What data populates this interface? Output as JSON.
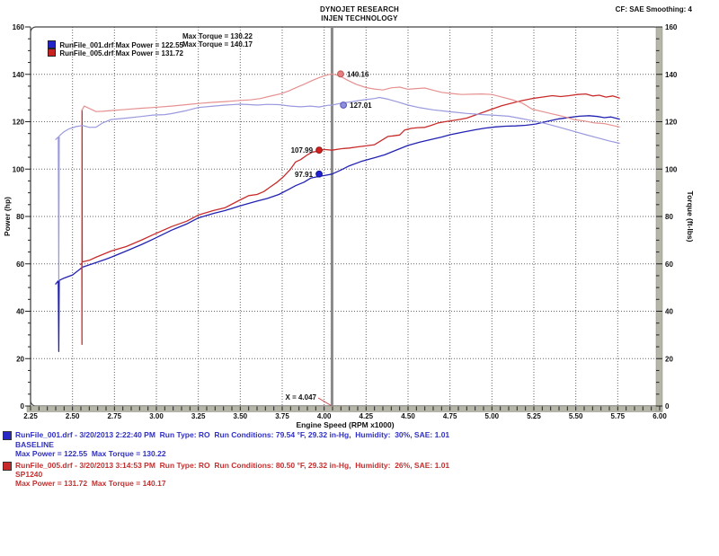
{
  "header": {
    "title": "DYNOJET RESEARCH",
    "subtitle": "INJEN TECHNOLOGY",
    "correction": "CF: SAE  Smoothing: 4"
  },
  "legend": {
    "rows": [
      {
        "swatch": "#2323c8",
        "file_power": "RunFile_001.drf Max Power = 122.55",
        "torque": "Max Torque = 130.22"
      },
      {
        "swatch": "#c82323",
        "file_power": "RunFile_005.drf Max Power = 131.72",
        "torque": "Max Torque = 140.17"
      }
    ]
  },
  "cursor": {
    "rpm": 4.047,
    "label": "X = 4.047",
    "color": "#8a8a8a",
    "pointer_color": "#cc4444"
  },
  "chart_data": {
    "type": "line",
    "title": "",
    "xlabel": "Engine Speed (RPM x1000)",
    "ylabel_left": "Power (hp)",
    "ylabel_right": "Torque (ft-lbs)",
    "xlim": [
      2.25,
      6.0
    ],
    "ylim": [
      0,
      160
    ],
    "grid": "dotted",
    "legend_position": "top-left",
    "x_ticks": [
      "2.25",
      "2.50",
      "2.75",
      "3.00",
      "3.25",
      "3.50",
      "3.75",
      "4.00",
      "4.25",
      "4.50",
      "4.75",
      "5.00",
      "5.25",
      "5.50",
      "5.75",
      "6.00"
    ],
    "y_ticks": [
      "0",
      "20",
      "40",
      "60",
      "80",
      "100",
      "120",
      "140",
      "160"
    ],
    "series": [
      {
        "name": "RunFile_001 Power (hp)",
        "color": "#2222b2",
        "width": 1.3,
        "points": [
          [
            2.4,
            51.5
          ],
          [
            2.415,
            52.8
          ],
          [
            2.418,
            23.0
          ],
          [
            2.421,
            53.0
          ],
          [
            2.45,
            54.0
          ],
          [
            2.5,
            55.3
          ],
          [
            2.56,
            58.6
          ],
          [
            2.64,
            60.5
          ],
          [
            2.7,
            62.0
          ],
          [
            2.73,
            62.8
          ],
          [
            2.82,
            65.4
          ],
          [
            2.91,
            68.1
          ],
          [
            2.98,
            70.4
          ],
          [
            3.09,
            74.2
          ],
          [
            3.18,
            76.8
          ],
          [
            3.25,
            79.4
          ],
          [
            3.34,
            81.3
          ],
          [
            3.41,
            82.5
          ],
          [
            3.5,
            84.5
          ],
          [
            3.6,
            86.5
          ],
          [
            3.66,
            87.6
          ],
          [
            3.73,
            89.3
          ],
          [
            3.79,
            91.5
          ],
          [
            3.83,
            93.0
          ],
          [
            3.88,
            94.5
          ],
          [
            3.92,
            96.2
          ],
          [
            3.97,
            96.9
          ],
          [
            4.01,
            97.4
          ],
          [
            4.047,
            97.91
          ],
          [
            4.1,
            99.6
          ],
          [
            4.15,
            101.4
          ],
          [
            4.22,
            103.2
          ],
          [
            4.3,
            104.8
          ],
          [
            4.36,
            106.0
          ],
          [
            4.43,
            108.0
          ],
          [
            4.5,
            110.0
          ],
          [
            4.57,
            111.4
          ],
          [
            4.65,
            112.7
          ],
          [
            4.7,
            113.5
          ],
          [
            4.75,
            114.5
          ],
          [
            4.82,
            115.5
          ],
          [
            4.9,
            116.6
          ],
          [
            4.96,
            117.3
          ],
          [
            5.02,
            117.8
          ],
          [
            5.08,
            118.1
          ],
          [
            5.14,
            118.2
          ],
          [
            5.2,
            118.5
          ],
          [
            5.26,
            119.0
          ],
          [
            5.32,
            120.0
          ],
          [
            5.4,
            121.2
          ],
          [
            5.46,
            121.8
          ],
          [
            5.52,
            122.3
          ],
          [
            5.58,
            122.55
          ],
          [
            5.63,
            122.2
          ],
          [
            5.67,
            121.7
          ],
          [
            5.71,
            122.0
          ],
          [
            5.76,
            121.1
          ]
        ]
      },
      {
        "name": "RunFile_005 Power (hp)",
        "color": "#c92c2c",
        "width": 1.3,
        "points": [
          [
            2.548,
            59.8
          ],
          [
            2.556,
            60.3
          ],
          [
            2.5565,
            26.0
          ],
          [
            2.557,
            125.0
          ],
          [
            2.558,
            60.8
          ],
          [
            2.6,
            61.5
          ],
          [
            2.64,
            62.8
          ],
          [
            2.73,
            65.4
          ],
          [
            2.82,
            67.3
          ],
          [
            2.91,
            70.0
          ],
          [
            2.98,
            72.3
          ],
          [
            3.09,
            75.7
          ],
          [
            3.18,
            78.0
          ],
          [
            3.25,
            80.6
          ],
          [
            3.34,
            82.5
          ],
          [
            3.41,
            83.7
          ],
          [
            3.5,
            87.0
          ],
          [
            3.55,
            88.8
          ],
          [
            3.6,
            89.3
          ],
          [
            3.64,
            90.5
          ],
          [
            3.68,
            92.5
          ],
          [
            3.72,
            94.5
          ],
          [
            3.76,
            97.0
          ],
          [
            3.8,
            100.0
          ],
          [
            3.83,
            103.0
          ],
          [
            3.86,
            104.0
          ],
          [
            3.9,
            106.0
          ],
          [
            3.93,
            107.2
          ],
          [
            3.97,
            107.6
          ],
          [
            4.0,
            108.3
          ],
          [
            4.047,
            107.99
          ],
          [
            4.1,
            108.6
          ],
          [
            4.15,
            108.9
          ],
          [
            4.2,
            109.4
          ],
          [
            4.25,
            109.8
          ],
          [
            4.3,
            110.3
          ],
          [
            4.34,
            112.0
          ],
          [
            4.38,
            113.8
          ],
          [
            4.41,
            114.0
          ],
          [
            4.45,
            114.4
          ],
          [
            4.48,
            116.5
          ],
          [
            4.52,
            117.2
          ],
          [
            4.56,
            117.5
          ],
          [
            4.6,
            117.6
          ],
          [
            4.64,
            118.5
          ],
          [
            4.68,
            119.5
          ],
          [
            4.72,
            120.0
          ],
          [
            4.76,
            120.4
          ],
          [
            4.81,
            121.0
          ],
          [
            4.85,
            121.5
          ],
          [
            4.9,
            122.8
          ],
          [
            4.95,
            124.0
          ],
          [
            5.0,
            125.3
          ],
          [
            5.06,
            126.8
          ],
          [
            5.12,
            127.9
          ],
          [
            5.18,
            128.9
          ],
          [
            5.24,
            129.8
          ],
          [
            5.3,
            130.4
          ],
          [
            5.36,
            131.0
          ],
          [
            5.41,
            130.6
          ],
          [
            5.46,
            131.0
          ],
          [
            5.51,
            131.5
          ],
          [
            5.56,
            131.72
          ],
          [
            5.6,
            130.9
          ],
          [
            5.64,
            131.2
          ],
          [
            5.68,
            130.4
          ],
          [
            5.72,
            130.9
          ],
          [
            5.76,
            130.0
          ]
        ]
      },
      {
        "name": "RunFile_001 Torque (ft-lbs)",
        "color": "#9a9adf",
        "width": 1.2,
        "points": [
          [
            2.4,
            112.5
          ],
          [
            2.415,
            113.5
          ],
          [
            2.418,
            53.0
          ],
          [
            2.421,
            114.0
          ],
          [
            2.45,
            115.8
          ],
          [
            2.48,
            117.0
          ],
          [
            2.52,
            117.9
          ],
          [
            2.56,
            118.4
          ],
          [
            2.6,
            117.6
          ],
          [
            2.64,
            117.7
          ],
          [
            2.68,
            119.5
          ],
          [
            2.73,
            120.9
          ],
          [
            2.82,
            121.5
          ],
          [
            2.91,
            122.2
          ],
          [
            2.98,
            122.8
          ],
          [
            3.05,
            123.0
          ],
          [
            3.09,
            123.4
          ],
          [
            3.18,
            124.7
          ],
          [
            3.25,
            126.0
          ],
          [
            3.34,
            126.6
          ],
          [
            3.41,
            127.0
          ],
          [
            3.5,
            127.4
          ],
          [
            3.56,
            127.2
          ],
          [
            3.6,
            127.0
          ],
          [
            3.66,
            127.3
          ],
          [
            3.73,
            127.2
          ],
          [
            3.8,
            126.6
          ],
          [
            3.86,
            126.3
          ],
          [
            3.92,
            126.6
          ],
          [
            3.97,
            126.2
          ],
          [
            4.02,
            126.9
          ],
          [
            4.047,
            127.01
          ],
          [
            4.1,
            127.8
          ],
          [
            4.17,
            128.5
          ],
          [
            4.24,
            129.3
          ],
          [
            4.3,
            129.8
          ],
          [
            4.33,
            130.22
          ],
          [
            4.38,
            129.5
          ],
          [
            4.44,
            128.3
          ],
          [
            4.5,
            127.0
          ],
          [
            4.57,
            125.9
          ],
          [
            4.65,
            125.0
          ],
          [
            4.75,
            124.2
          ],
          [
            4.85,
            123.5
          ],
          [
            4.95,
            123.0
          ],
          [
            5.02,
            122.7
          ],
          [
            5.1,
            122.3
          ],
          [
            5.18,
            121.3
          ],
          [
            5.25,
            120.3
          ],
          [
            5.32,
            119.2
          ],
          [
            5.4,
            117.7
          ],
          [
            5.49,
            115.9
          ],
          [
            5.56,
            114.5
          ],
          [
            5.63,
            113.2
          ],
          [
            5.7,
            111.9
          ],
          [
            5.76,
            110.9
          ]
        ]
      },
      {
        "name": "RunFile_005 Torque (ft-lbs)",
        "color": "#e69191",
        "width": 1.2,
        "points": [
          [
            2.556,
            124.8
          ],
          [
            2.57,
            126.6
          ],
          [
            2.6,
            125.6
          ],
          [
            2.64,
            124.3
          ],
          [
            2.68,
            124.4
          ],
          [
            2.73,
            124.7
          ],
          [
            2.82,
            125.2
          ],
          [
            2.91,
            125.7
          ],
          [
            2.98,
            126.0
          ],
          [
            3.09,
            126.6
          ],
          [
            3.18,
            127.2
          ],
          [
            3.25,
            127.7
          ],
          [
            3.34,
            128.2
          ],
          [
            3.41,
            128.5
          ],
          [
            3.5,
            129.0
          ],
          [
            3.56,
            129.2
          ],
          [
            3.62,
            129.8
          ],
          [
            3.68,
            130.8
          ],
          [
            3.74,
            131.8
          ],
          [
            3.79,
            133.0
          ],
          [
            3.83,
            134.3
          ],
          [
            3.88,
            135.8
          ],
          [
            3.93,
            137.4
          ],
          [
            3.97,
            138.6
          ],
          [
            4.01,
            139.6
          ],
          [
            4.047,
            140.16
          ],
          [
            4.09,
            139.4
          ],
          [
            4.14,
            137.5
          ],
          [
            4.19,
            135.8
          ],
          [
            4.25,
            134.4
          ],
          [
            4.3,
            133.8
          ],
          [
            4.35,
            133.4
          ],
          [
            4.4,
            134.3
          ],
          [
            4.45,
            134.6
          ],
          [
            4.5,
            133.7
          ],
          [
            4.55,
            134.0
          ],
          [
            4.6,
            134.2
          ],
          [
            4.65,
            133.3
          ],
          [
            4.7,
            132.4
          ],
          [
            4.76,
            131.9
          ],
          [
            4.82,
            131.5
          ],
          [
            4.88,
            131.6
          ],
          [
            4.94,
            131.7
          ],
          [
            5.0,
            131.5
          ],
          [
            5.06,
            130.4
          ],
          [
            5.12,
            129.3
          ],
          [
            5.18,
            127.9
          ],
          [
            5.24,
            125.3
          ],
          [
            5.3,
            124.3
          ],
          [
            5.36,
            123.3
          ],
          [
            5.42,
            122.3
          ],
          [
            5.49,
            120.9
          ],
          [
            5.55,
            120.3
          ],
          [
            5.61,
            119.5
          ],
          [
            5.67,
            119.2
          ],
          [
            5.72,
            118.4
          ],
          [
            5.76,
            117.8
          ]
        ]
      }
    ],
    "annotations": [
      {
        "text": "140.16",
        "rpm": 4.098,
        "value": 140.16,
        "dot_fill": "#e87f7f",
        "dot_stroke": "#c05555",
        "side": "right"
      },
      {
        "text": "127.01",
        "rpm": 4.115,
        "value": 127.01,
        "dot_fill": "#8f8fe0",
        "dot_stroke": "#5555b8",
        "side": "right"
      },
      {
        "text": "107.99",
        "rpm": 3.97,
        "value": 107.99,
        "dot_fill": "#d41f1f",
        "dot_stroke": "#8f1515",
        "side": "left"
      },
      {
        "text": "97.91",
        "rpm": 3.97,
        "value": 97.91,
        "dot_fill": "#1f1fd4",
        "dot_stroke": "#15158f",
        "side": "left"
      }
    ]
  },
  "footer": {
    "runs": [
      {
        "swatch": "#2828c8",
        "text_color": "#3030c4",
        "line1": "RunFile_001.drf - 3/20/2013 2:22:40 PM  Run Type: RO  Run Conditions: 79.54 °F, 29.32 in-Hg,  Humidity:  30%, SAE: 1.01",
        "name": "BASELINE",
        "line2": "Max Power = 122.55  Max Torque = 130.22"
      },
      {
        "swatch": "#c82828",
        "text_color": "#c43030",
        "line1": "RunFile_005.drf - 3/20/2013 3:14:53 PM  Run Type: RO  Run Conditions: 80.50 °F, 29.32 in-Hg,  Humidity:  26%, SAE: 1.01",
        "name": "SP1240",
        "line2": "Max Power = 131.72  Max Torque = 140.17"
      }
    ]
  }
}
